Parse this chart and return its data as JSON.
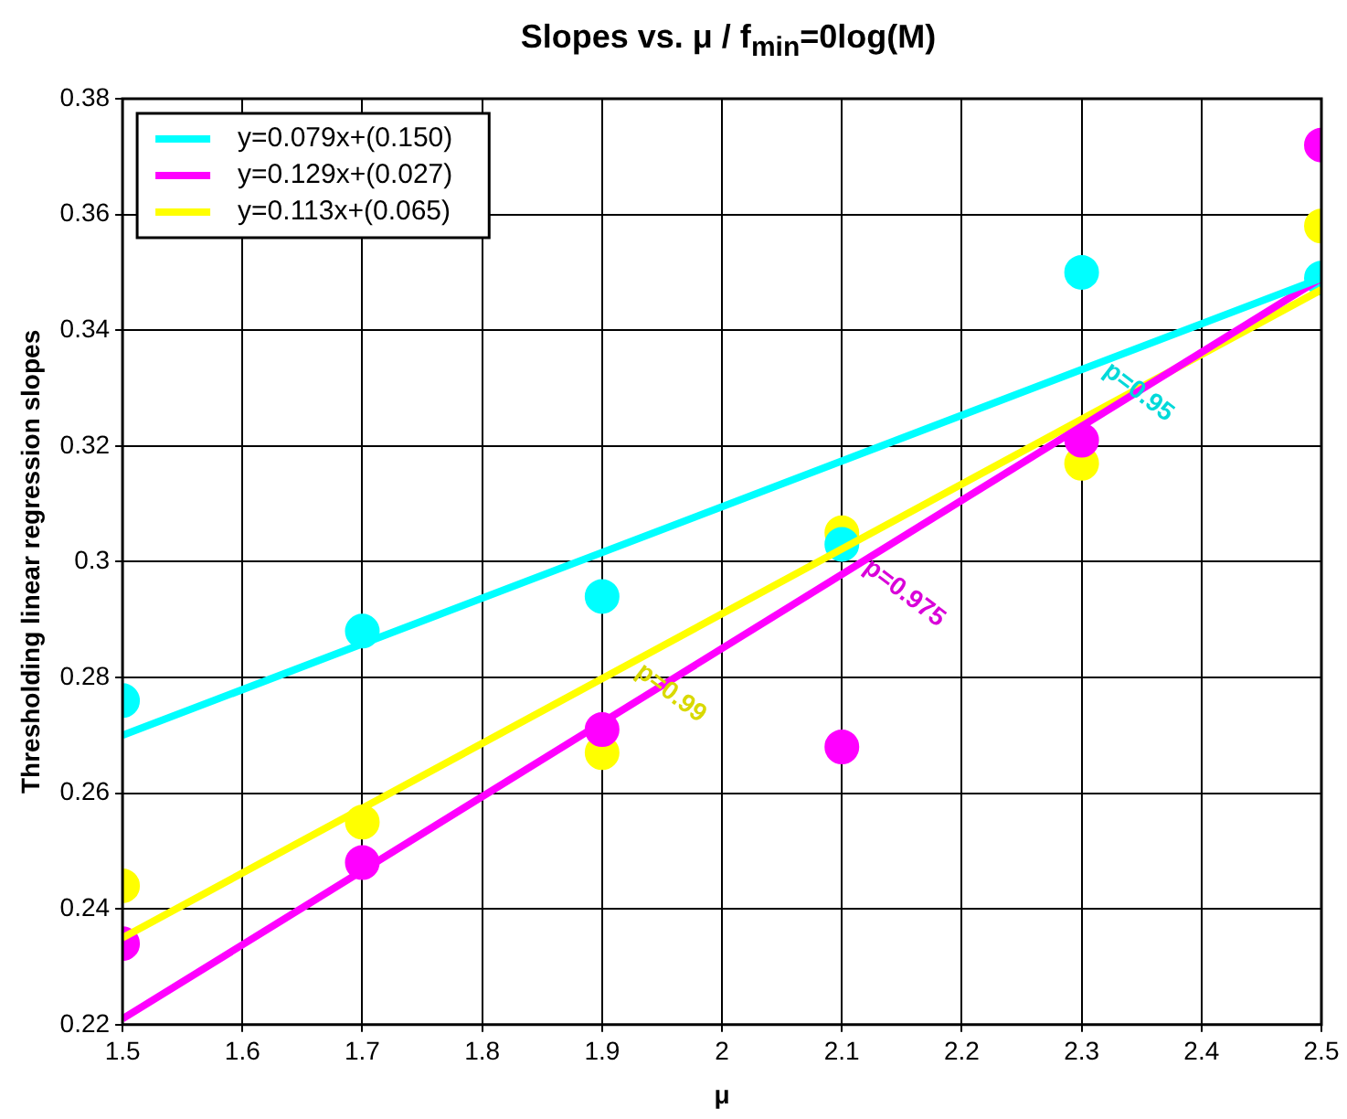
{
  "chart_data": {
    "type": "scatter",
    "title": "Slopes vs. μ / f$_{min}$=0log(M)",
    "xlabel": "μ",
    "ylabel": "Thresholding linear regression slopes",
    "x": [
      1.5,
      1.7,
      1.9,
      2.1,
      2.3,
      2.5
    ],
    "series": [
      {
        "type": "scatter",
        "color": "#00ffff",
        "marker": "circle",
        "values": [
          0.276,
          0.288,
          0.294,
          0.303,
          0.35,
          0.349
        ]
      },
      {
        "type": "scatter",
        "color": "#ff00ff",
        "marker": "circle",
        "values": [
          0.234,
          0.248,
          0.271,
          0.268,
          0.321,
          0.372
        ]
      },
      {
        "type": "scatter",
        "color": "#ffff00",
        "marker": "circle",
        "values": [
          0.244,
          0.255,
          0.267,
          0.305,
          0.317,
          0.358
        ]
      },
      {
        "type": "line",
        "name": "y=0.079x+(0.150)",
        "color": "#00ffff",
        "values": [
          0.27,
          null,
          null,
          null,
          null,
          0.349
        ]
      },
      {
        "type": "line",
        "name": "y=0.129x+(0.027)",
        "color": "#ff00ff",
        "values": [
          0.221,
          null,
          null,
          null,
          null,
          0.349
        ]
      },
      {
        "type": "line",
        "name": "y=0.113x+(0.065)",
        "color": "#ffff00",
        "values": [
          0.235,
          null,
          null,
          null,
          null,
          0.347
        ]
      }
    ],
    "annotations": [
      {
        "text": "p=0.95",
        "x": 2.33,
        "y": 0.336
      },
      {
        "text": "p=0.975",
        "x": 2.13,
        "y": 0.302
      },
      {
        "text": "p=0.99",
        "x": 1.94,
        "y": 0.284
      }
    ],
    "xlim": [
      1.5,
      2.5
    ],
    "xticks": [
      1.5,
      1.6,
      1.7,
      1.8,
      1.9,
      2,
      2.1,
      2.2,
      2.3,
      2.4,
      2.5
    ],
    "ylim": [
      0.22,
      0.38
    ],
    "yticks": [
      0.22,
      0.24,
      0.26,
      0.28,
      0.3,
      0.32,
      0.34,
      0.36,
      0.38
    ],
    "grid": true,
    "legend": "top left",
    "line_style": "solid"
  }
}
